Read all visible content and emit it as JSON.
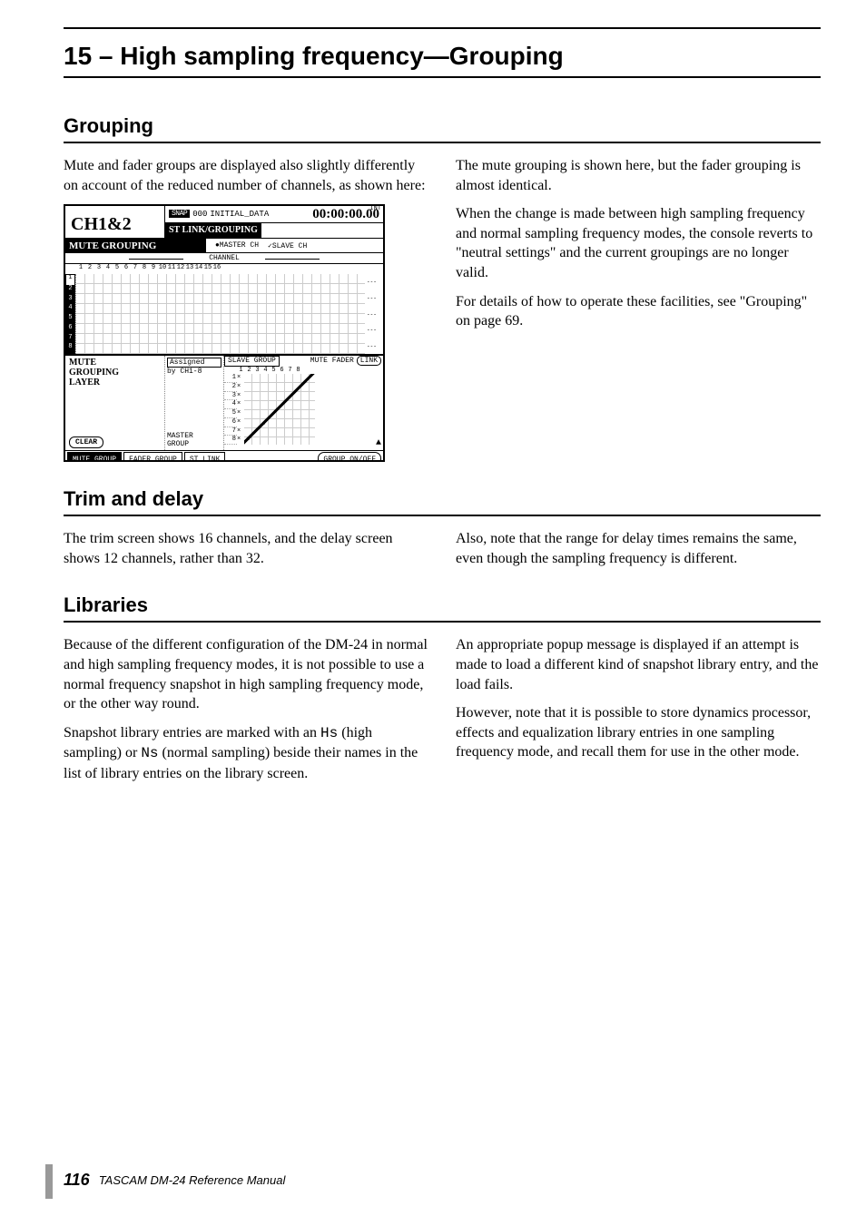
{
  "chapter": {
    "title": "15 – High sampling frequency—Grouping"
  },
  "sections": {
    "grouping": {
      "heading": "Grouping",
      "left_p1": "Mute and fader groups are displayed also slightly differently on account of the reduced number of channels, as shown here:",
      "right_p1": "The mute grouping is shown here, but the fader grouping is almost identical.",
      "right_p2": "When the change is made between high sampling frequency and normal sampling frequency modes, the console reverts to \"neutral settings\" and the current groupings are no longer valid.",
      "right_p3": "For details of how to operate these facilities, see \"Grouping\" on page 69."
    },
    "trim": {
      "heading": "Trim and delay",
      "left_p1": "The trim screen shows 16 channels, and the delay screen shows 12 channels, rather than 32.",
      "right_p1": "Also, note that the range for delay times remains the same, even though the sampling frequency is different."
    },
    "libraries": {
      "heading": "Libraries",
      "left_p1": "Because of the different configuration of the DM-24 in normal and high sampling frequency modes, it is not possible to use a normal frequency snapshot in high sampling frequency mode, or the other way round.",
      "left_p2_a": "Snapshot library entries are marked with an ",
      "left_p2_hs": "Hs",
      "left_p2_b": " (high sampling) or ",
      "left_p2_ns": "Ns",
      "left_p2_c": " (normal sampling) beside their names in the list of library entries on the library screen.",
      "right_p1": "An appropriate popup message is displayed if an attempt is made to load a different kind of snapshot library entry, and the load fails.",
      "right_p2": "However, note that it is possible to store dynamics processor, effects and equalization library entries in one sampling frequency mode, and recall them for use in the other mode."
    }
  },
  "lcd": {
    "ch_label": "CH1&2",
    "snap_badge": "SNAP",
    "snap_num": "000",
    "initial": "INITIAL_DATA",
    "int": "INT",
    "time": "00:00:00.00",
    "stlink": "ST LINK/GROUPING",
    "mute_grouping": "MUTE GROUPING",
    "master_ch": "●MASTER CH",
    "slave_ch": "✓SLAVE CH",
    "channel_label": "CHANNEL",
    "top_numbers": [
      "1",
      "2",
      "3",
      "4",
      "5",
      "6",
      "7",
      "8",
      "9",
      "10",
      "11",
      "12",
      "13",
      "14",
      "15",
      "16"
    ],
    "row_numbers": [
      "1",
      "2",
      "3",
      "4",
      "5",
      "6",
      "7",
      "8"
    ],
    "lower_title1": "MUTE",
    "lower_title2": "GROUPING",
    "lower_title3": "LAYER",
    "assigned": "Assigned",
    "by_ch": "by CH1-8",
    "master_group": "MASTER",
    "group_label": "GROUP",
    "clear": "CLEAR",
    "slave_group": "SLAVE GROUP",
    "sg_numbers": [
      "1",
      "2",
      "3",
      "4",
      "5",
      "6",
      "7",
      "8"
    ],
    "sg_rows": [
      "1",
      "2",
      "3",
      "4",
      "5",
      "6",
      "7",
      "8"
    ],
    "mute_fader": "MUTE FADER",
    "link": "LINK",
    "tabs": {
      "mute_group": "MUTE GROUP",
      "fader_group": "FADER GROUP",
      "st_link": "ST LINK",
      "group_onoff": "GROUP ON/OFF"
    }
  },
  "footer": {
    "page": "116",
    "text": "TASCAM DM-24 Reference Manual"
  }
}
